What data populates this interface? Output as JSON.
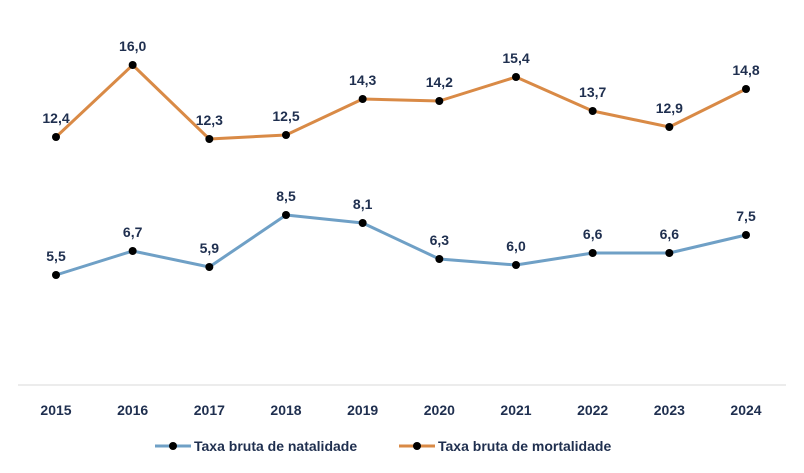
{
  "chart_data": {
    "type": "line",
    "categories": [
      "2015",
      "2016",
      "2017",
      "2018",
      "2019",
      "2020",
      "2021",
      "2022",
      "2023",
      "2024"
    ],
    "series": [
      {
        "name": "Taxa bruta de natalidade",
        "color": "#6fa0c6",
        "values": [
          5.5,
          6.7,
          5.9,
          8.5,
          8.1,
          6.3,
          6.0,
          6.6,
          6.6,
          7.5
        ],
        "labels": [
          "5,5",
          "6,7",
          "5,9",
          "8,5",
          "8,1",
          "6,3",
          "6,0",
          "6,6",
          "6,6",
          "7,5"
        ]
      },
      {
        "name": "Taxa bruta de mortalidade",
        "color": "#d98a46",
        "values": [
          12.4,
          16.0,
          12.3,
          12.5,
          14.3,
          14.2,
          15.4,
          13.7,
          12.9,
          14.8
        ],
        "labels": [
          "12,4",
          "16,0",
          "12,3",
          "12,5",
          "14,3",
          "14,2",
          "15,4",
          "13,7",
          "12,9",
          "14,8"
        ]
      }
    ],
    "ylim": [
      0,
      16.2
    ],
    "grid": false,
    "legend_position": "bottom",
    "marker_color": "#000000",
    "text_color": "#1f2f4f",
    "axis_color": "#d9d9d9"
  }
}
